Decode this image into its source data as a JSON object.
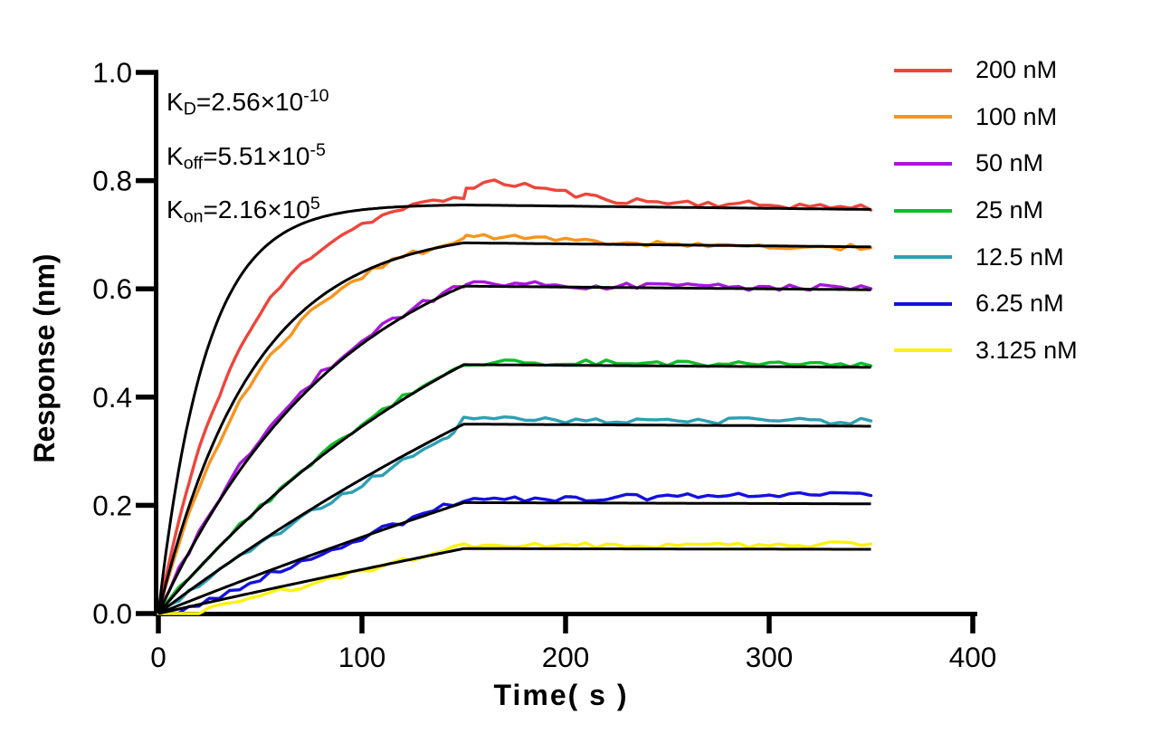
{
  "figure": {
    "background": "#ffffff",
    "annotations": [
      {
        "base": "K",
        "sub": "D",
        "mid": "=2.56×10",
        "sup": "-10"
      },
      {
        "base": "K",
        "sub": "off",
        "mid": "=5.51×10",
        "sup": "-5"
      },
      {
        "base": "K",
        "sub": "on",
        "mid": "=2.16×10",
        "sup": "5"
      }
    ],
    "legend": [
      {
        "label": "200 nM",
        "color": "#EE453B"
      },
      {
        "label": "100 nM",
        "color": "#F7941D"
      },
      {
        "label": "50 nM",
        "color": "#A816DC"
      },
      {
        "label": "25 nM",
        "color": "#0DBE29"
      },
      {
        "label": "12.5 nM",
        "color": "#2E9FB4"
      },
      {
        "label": "6.25 nM",
        "color": "#1410E0"
      },
      {
        "label": "3.125 nM",
        "color": "#FBF30D"
      }
    ]
  },
  "chart_data": {
    "type": "line",
    "title": "",
    "xlabel": "Time( s )",
    "xlabel_main": "Time",
    "xlabel_unit": "( s )",
    "ylabel": "Response (nm)",
    "xlim": [
      0,
      400
    ],
    "ylim": [
      0,
      1.0
    ],
    "x_ticks": [
      0,
      100,
      200,
      300,
      400
    ],
    "x_tick_labels": [
      "0",
      "100",
      "200",
      "300",
      "400"
    ],
    "y_ticks": [
      0,
      0.2,
      0.4,
      0.6,
      0.8,
      1.0
    ],
    "y_tick_labels": [
      "0.0",
      "0.2",
      "0.4",
      "0.6",
      "0.8",
      "1.0"
    ],
    "grid": false,
    "legend_position": "top-right",
    "phases": {
      "association_s": [
        0,
        150
      ],
      "dissociation_s": [
        150,
        350
      ]
    },
    "kinetics": {
      "KD_M": 2.56e-10,
      "koff": 5.51e-05,
      "kon": 216000
    },
    "fit_color": "#000000",
    "series": [
      {
        "name": "200 nM",
        "concentration_nM": 200,
        "color": "#EE453B",
        "fit": {
          "k_obs": 0.0432,
          "r_150s": 0.755
        },
        "data": {
          "k": 0.024,
          "t0": 0,
          "r_150s": 0.77,
          "r_350s": 0.75,
          "peak": {
            "value": 0.795,
            "t": 170,
            "width": 34
          },
          "noise": 0.0065
        }
      },
      {
        "name": "100 nM",
        "concentration_nM": 100,
        "color": "#F7941D",
        "fit": {
          "k_obs": 0.0216,
          "r_150s": 0.685
        },
        "data": {
          "k": 0.019,
          "t0": 0,
          "r_150s": 0.69,
          "r_350s": 0.676,
          "peak": {
            "value": 0.698,
            "t": 166,
            "width": 26
          },
          "noise": 0.006
        }
      },
      {
        "name": "50 nM",
        "concentration_nM": 50,
        "color": "#A816DC",
        "fit": {
          "k_obs": 0.0108,
          "r_150s": 0.605
        },
        "data": {
          "k": 0.0113,
          "t0": 0,
          "r_150s": 0.608,
          "r_350s": 0.601,
          "peak": {
            "value": 0.611,
            "t": 162,
            "width": 20
          },
          "noise": 0.006
        }
      },
      {
        "name": "25 nM",
        "concentration_nM": 25,
        "color": "#0DBE29",
        "fit": {
          "k_obs": 0.0054,
          "r_150s": 0.46
        },
        "data": {
          "k": 0.0053,
          "t0": 0,
          "r_150s": 0.464,
          "r_350s": 0.461,
          "peak": null,
          "noise": 0.0058
        }
      },
      {
        "name": "12.5 nM",
        "concentration_nM": 12.5,
        "color": "#2E9FB4",
        "fit": {
          "k_obs": 0.0027,
          "r_150s": 0.35
        },
        "data": {
          "k": 0.0027,
          "t0": 0,
          "step": {
            "t": 142,
            "r_pre": 0.322
          },
          "r_150s": 0.358,
          "r_350s": 0.356,
          "peak": null,
          "noise": 0.0062
        }
      },
      {
        "name": "6.25 nM",
        "concentration_nM": 6.25,
        "color": "#1410E0",
        "fit": {
          "k_obs": 0.00135,
          "r_150s": 0.205
        },
        "data": {
          "k": 0.0012,
          "t0": 10,
          "r_150s": 0.212,
          "r_350s": 0.219,
          "peak": null,
          "noise": 0.006
        }
      },
      {
        "name": "3.125 nM",
        "concentration_nM": 3.125,
        "color": "#FBF30D",
        "fit": {
          "k_obs": 0.000675,
          "r_150s": 0.12
        },
        "data": {
          "k": 0.0007,
          "t0": 18,
          "r_150s": 0.125,
          "r_350s": 0.128,
          "peak": null,
          "noise": 0.005
        }
      }
    ]
  }
}
